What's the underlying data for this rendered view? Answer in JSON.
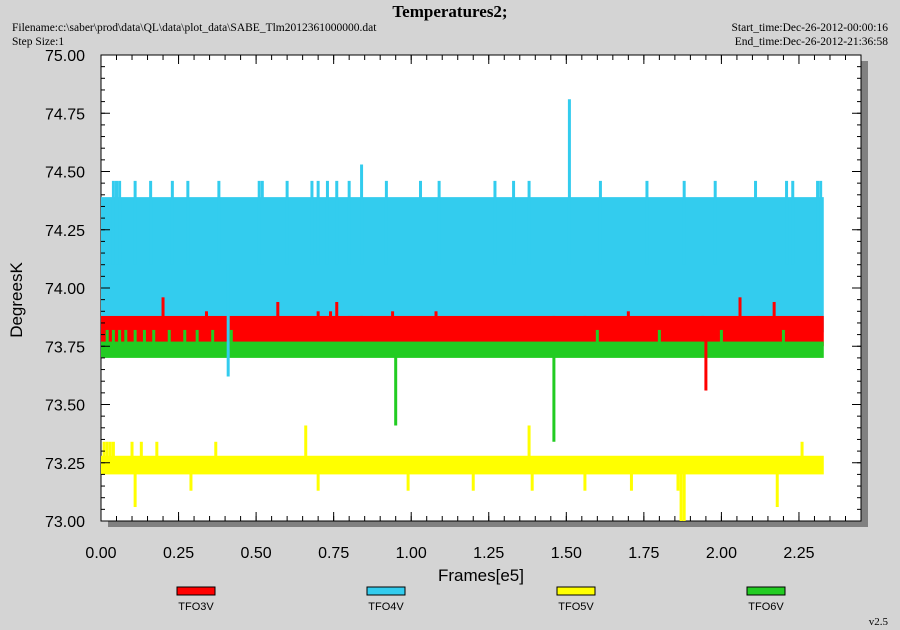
{
  "header": {
    "filename": "Filename:c:\\saber\\prod\\data\\QL\\data\\plot_data\\SABE_Tlm2012361000000.dat",
    "step_size": "Step Size:1",
    "start_time": "Start_time:Dec-26-2012-00:00:16",
    "end_time": "End_time:Dec-26-2012-21:36:58",
    "version": "v2.5"
  },
  "chart_data": {
    "type": "line",
    "title": "Temperatures2;",
    "xlabel": "Frames[e5]",
    "ylabel": "DegreesK",
    "xlim": [
      0,
      2.45
    ],
    "ylim": [
      73.0,
      75.0
    ],
    "xticks": [
      "0.00",
      "0.25",
      "0.50",
      "0.75",
      "1.00",
      "1.25",
      "1.50",
      "1.75",
      "2.00",
      "2.25"
    ],
    "yticks": [
      "73.00",
      "73.25",
      "73.50",
      "73.75",
      "74.00",
      "74.25",
      "74.50",
      "74.75",
      "75.00"
    ],
    "grid": false,
    "legend_position": "bottom",
    "colors": {
      "plot_bg": "#ffffff",
      "page_bg": "#d4d4d4",
      "shadow": "#808080"
    },
    "x_end": 2.33,
    "series": [
      {
        "name": "TFO3V",
        "color": "#ff0000",
        "band": [
          73.75,
          73.88
        ],
        "spikes": [
          [
            0.2,
            73.96
          ],
          [
            0.34,
            73.9
          ],
          [
            0.56,
            73.88
          ],
          [
            0.57,
            73.88
          ],
          [
            0.57,
            73.94
          ],
          [
            0.7,
            73.9
          ],
          [
            0.74,
            73.9
          ],
          [
            0.76,
            73.94
          ],
          [
            0.8,
            73.88
          ],
          [
            0.84,
            73.88
          ],
          [
            0.94,
            73.9
          ],
          [
            1.08,
            73.9
          ],
          [
            1.46,
            73.88
          ],
          [
            1.56,
            73.88
          ],
          [
            1.7,
            73.9
          ],
          [
            1.94,
            73.88
          ],
          [
            1.95,
            73.56
          ],
          [
            2.06,
            73.96
          ],
          [
            2.12,
            73.88
          ],
          [
            2.17,
            73.94
          ],
          [
            2.31,
            73.88
          ]
        ]
      },
      {
        "name": "TFO4V",
        "color": "#33ccee",
        "band": [
          73.81,
          74.39
        ],
        "spikes": [
          [
            0.04,
            74.46
          ],
          [
            0.05,
            74.46
          ],
          [
            0.06,
            74.46
          ],
          [
            0.11,
            74.46
          ],
          [
            0.16,
            74.46
          ],
          [
            0.23,
            74.46
          ],
          [
            0.28,
            74.46
          ],
          [
            0.38,
            74.46
          ],
          [
            0.41,
            73.62
          ],
          [
            0.51,
            74.46
          ],
          [
            0.52,
            74.46
          ],
          [
            0.6,
            74.46
          ],
          [
            0.68,
            74.46
          ],
          [
            0.7,
            74.46
          ],
          [
            0.73,
            74.46
          ],
          [
            0.76,
            74.46
          ],
          [
            0.8,
            74.46
          ],
          [
            0.84,
            74.53
          ],
          [
            0.92,
            74.46
          ],
          [
            1.03,
            74.46
          ],
          [
            1.09,
            74.46
          ],
          [
            1.27,
            74.46
          ],
          [
            1.33,
            74.46
          ],
          [
            1.38,
            74.46
          ],
          [
            1.51,
            74.81
          ],
          [
            1.61,
            74.46
          ],
          [
            1.76,
            74.46
          ],
          [
            1.88,
            74.46
          ],
          [
            1.98,
            74.46
          ],
          [
            2.11,
            74.46
          ],
          [
            2.21,
            74.46
          ],
          [
            2.23,
            74.46
          ],
          [
            2.31,
            74.46
          ],
          [
            2.32,
            74.46
          ]
        ]
      },
      {
        "name": "TFO5V",
        "color": "#ffff00",
        "band": [
          73.2,
          73.28
        ],
        "spikes": [
          [
            0.01,
            73.34
          ],
          [
            0.02,
            73.34
          ],
          [
            0.03,
            73.34
          ],
          [
            0.04,
            73.34
          ],
          [
            0.1,
            73.34
          ],
          [
            0.11,
            73.06
          ],
          [
            0.13,
            73.34
          ],
          [
            0.18,
            73.34
          ],
          [
            0.29,
            73.13
          ],
          [
            0.37,
            73.34
          ],
          [
            0.66,
            73.41
          ],
          [
            0.7,
            73.13
          ],
          [
            0.99,
            73.13
          ],
          [
            1.2,
            73.13
          ],
          [
            1.38,
            73.41
          ],
          [
            1.39,
            73.13
          ],
          [
            1.56,
            73.13
          ],
          [
            1.71,
            73.13
          ],
          [
            1.86,
            73.13
          ],
          [
            1.87,
            73.0
          ],
          [
            1.88,
            73.0
          ],
          [
            2.18,
            73.06
          ],
          [
            2.26,
            73.34
          ]
        ]
      },
      {
        "name": "TFO6V",
        "color": "#22cc22",
        "band": [
          73.7,
          73.77
        ],
        "spikes": [
          [
            0.02,
            73.82
          ],
          [
            0.04,
            73.82
          ],
          [
            0.06,
            73.82
          ],
          [
            0.08,
            73.82
          ],
          [
            0.11,
            73.82
          ],
          [
            0.14,
            73.82
          ],
          [
            0.17,
            73.82
          ],
          [
            0.22,
            73.82
          ],
          [
            0.27,
            73.82
          ],
          [
            0.31,
            73.82
          ],
          [
            0.36,
            73.82
          ],
          [
            0.42,
            73.82
          ],
          [
            0.95,
            73.41
          ],
          [
            1.46,
            73.34
          ],
          [
            1.6,
            73.82
          ],
          [
            1.8,
            73.82
          ],
          [
            2.0,
            73.82
          ],
          [
            2.2,
            73.82
          ]
        ]
      }
    ]
  }
}
